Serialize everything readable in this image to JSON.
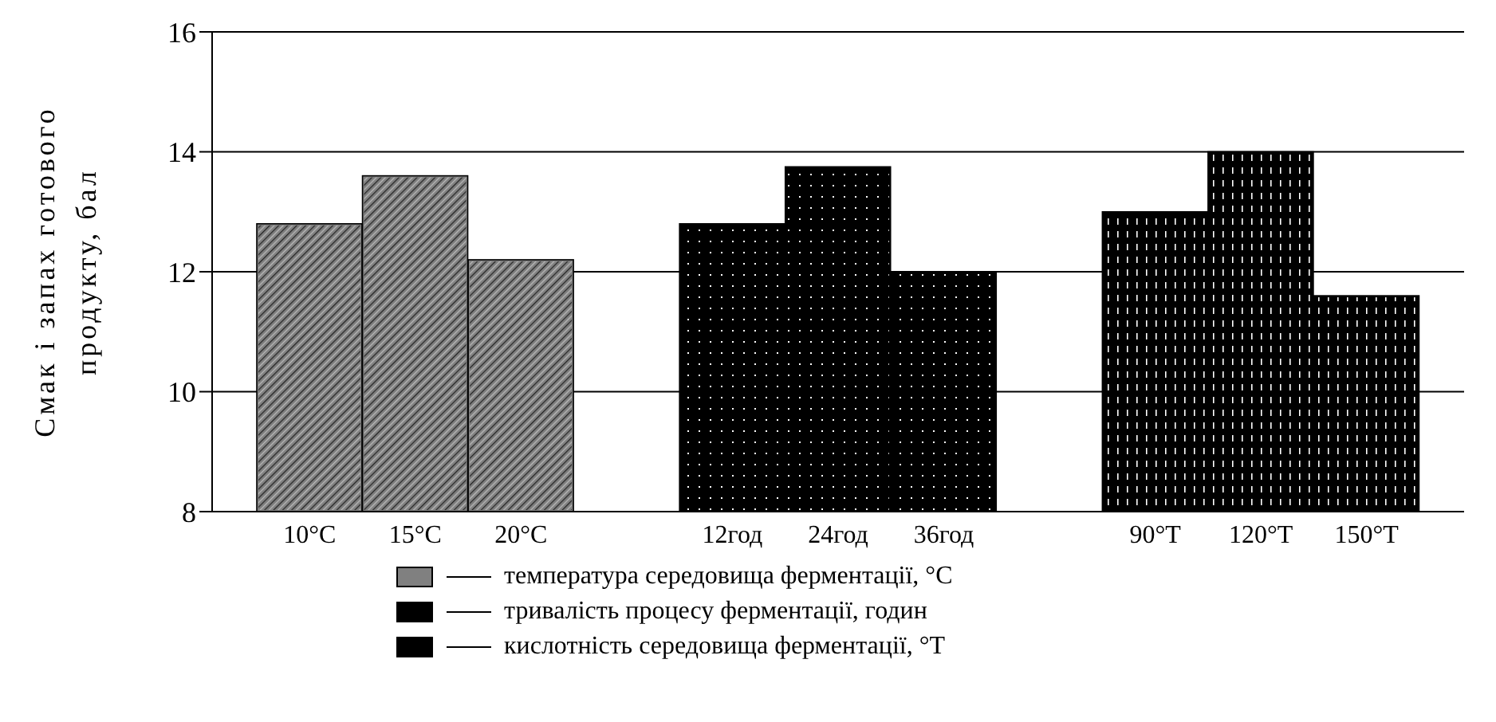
{
  "chart_data": {
    "type": "bar",
    "ylabel": "Смак і запах готового продукту, бал",
    "categories": [
      "10°C",
      "15°C",
      "20°C",
      null,
      "12год",
      "24год",
      "36год",
      null,
      "90°T",
      "120°T",
      "150°T"
    ],
    "series": [
      {
        "name": "температура середовища ферментації, °C",
        "color": "#808080",
        "values": [
          12.8,
          13.6,
          12.2,
          null,
          null,
          null,
          null,
          null,
          null,
          null,
          null
        ]
      },
      {
        "name": "тривалість процесу ферментації, годин",
        "color": "#000000",
        "values": [
          null,
          null,
          null,
          null,
          12.8,
          13.75,
          12.0,
          null,
          null,
          null,
          null
        ]
      },
      {
        "name": "кислотність середовища ферментації, °T",
        "color": "#000000",
        "values": [
          null,
          null,
          null,
          null,
          null,
          null,
          null,
          null,
          13.0,
          14.0,
          11.6
        ]
      }
    ],
    "ylim": [
      8,
      16
    ],
    "yticks": [
      8,
      10,
      12,
      14,
      16
    ],
    "grid": "y",
    "legend": "bottom"
  }
}
